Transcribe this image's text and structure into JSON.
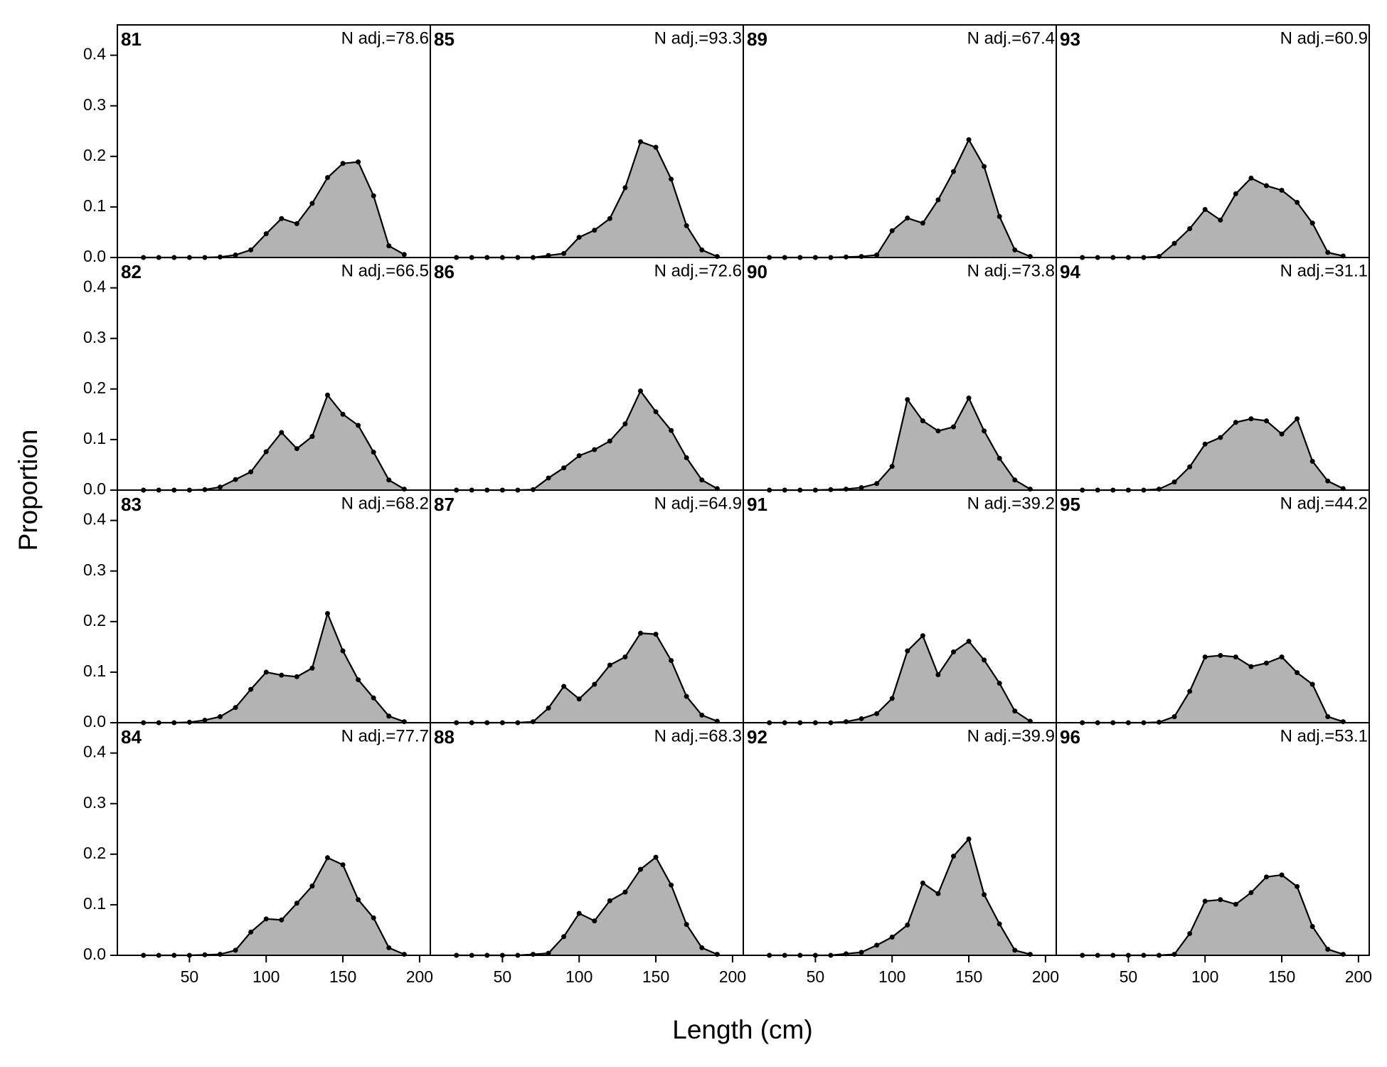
{
  "xlabel": "Length (cm)",
  "ylabel": "Proportion",
  "chart_data": [
    {
      "type": "area",
      "title": "81",
      "annotation": "N adj.=78.6",
      "color": "#b3b3b3",
      "x": [
        20,
        30,
        40,
        50,
        60,
        70,
        80,
        90,
        100,
        110,
        120,
        130,
        140,
        150,
        160,
        170,
        180,
        190
      ],
      "values": [
        0,
        0,
        0,
        0,
        0,
        0.001,
        0.005,
        0.015,
        0.047,
        0.077,
        0.067,
        0.107,
        0.158,
        0.186,
        0.189,
        0.122,
        0.023,
        0.006
      ],
      "xlim": [
        3,
        207
      ],
      "ylim": [
        0,
        0.46
      ],
      "yticks": [
        {
          "value": 0,
          "label": "0.0"
        },
        0.1,
        0.2,
        0.3,
        0.4
      ]
    },
    {
      "type": "area",
      "title": "82",
      "annotation": "N adj.=66.5",
      "color": "#b3b3b3",
      "x": [
        20,
        30,
        40,
        50,
        60,
        70,
        80,
        90,
        100,
        110,
        120,
        130,
        140,
        150,
        160,
        170,
        180,
        190
      ],
      "values": [
        0,
        0,
        0,
        0,
        0.001,
        0.006,
        0.021,
        0.036,
        0.076,
        0.114,
        0.082,
        0.106,
        0.188,
        0.15,
        0.128,
        0.075,
        0.02,
        0.002
      ],
      "xlim": [
        3,
        207
      ],
      "ylim": [
        0,
        0.46
      ],
      "yticks": [
        {
          "value": 0,
          "label": "0.0"
        },
        0.1,
        0.2,
        0.3,
        0.4
      ]
    },
    {
      "type": "area",
      "title": "83",
      "annotation": "N adj.=68.2",
      "color": "#b3b3b3",
      "x": [
        20,
        30,
        40,
        50,
        60,
        70,
        80,
        90,
        100,
        110,
        120,
        130,
        140,
        150,
        160,
        170,
        180,
        190
      ],
      "values": [
        0,
        0,
        0,
        0.001,
        0.005,
        0.012,
        0.03,
        0.066,
        0.1,
        0.094,
        0.091,
        0.108,
        0.216,
        0.142,
        0.085,
        0.049,
        0.013,
        0.002
      ],
      "xlim": [
        3,
        207
      ],
      "ylim": [
        0,
        0.46
      ],
      "yticks": [
        {
          "value": 0,
          "label": "0.0"
        },
        0.1,
        0.2,
        0.3,
        0.4
      ]
    },
    {
      "type": "area",
      "title": "84",
      "annotation": "N adj.=77.7",
      "color": "#b3b3b3",
      "x": [
        20,
        30,
        40,
        50,
        60,
        70,
        80,
        90,
        100,
        110,
        120,
        130,
        140,
        150,
        160,
        170,
        180,
        190
      ],
      "values": [
        0,
        0,
        0,
        0,
        0.001,
        0.002,
        0.01,
        0.046,
        0.072,
        0.07,
        0.103,
        0.137,
        0.193,
        0.179,
        0.11,
        0.074,
        0.015,
        0.002
      ],
      "xlim": [
        3,
        207
      ],
      "ylim": [
        0,
        0.46
      ],
      "yticks": [
        {
          "value": 0,
          "label": "0.0"
        },
        0.1,
        0.2,
        0.3,
        0.4
      ],
      "xticks": [
        50,
        100,
        150,
        200
      ]
    },
    {
      "type": "area",
      "title": "85",
      "annotation": "N adj.=93.3",
      "color": "#b3b3b3",
      "x": [
        20,
        30,
        40,
        50,
        60,
        70,
        80,
        90,
        100,
        110,
        120,
        130,
        140,
        150,
        160,
        170,
        180,
        190
      ],
      "values": [
        0,
        0,
        0,
        0,
        0,
        0,
        0.004,
        0.008,
        0.04,
        0.054,
        0.077,
        0.138,
        0.229,
        0.218,
        0.155,
        0.063,
        0.015,
        0.002
      ],
      "xlim": [
        3,
        207
      ],
      "ylim": [
        0,
        0.46
      ]
    },
    {
      "type": "area",
      "title": "86",
      "annotation": "N adj.=72.6",
      "color": "#b3b3b3",
      "x": [
        20,
        30,
        40,
        50,
        60,
        70,
        80,
        90,
        100,
        110,
        120,
        130,
        140,
        150,
        160,
        170,
        180,
        190
      ],
      "values": [
        0,
        0,
        0,
        0,
        0,
        0.001,
        0.024,
        0.044,
        0.068,
        0.08,
        0.097,
        0.131,
        0.196,
        0.155,
        0.118,
        0.064,
        0.02,
        0.003
      ],
      "xlim": [
        3,
        207
      ],
      "ylim": [
        0,
        0.46
      ]
    },
    {
      "type": "area",
      "title": "87",
      "annotation": "N adj.=64.9",
      "color": "#b3b3b3",
      "x": [
        20,
        30,
        40,
        50,
        60,
        70,
        80,
        90,
        100,
        110,
        120,
        130,
        140,
        150,
        160,
        170,
        180,
        190
      ],
      "values": [
        0,
        0,
        0,
        0,
        0,
        0.002,
        0.029,
        0.072,
        0.047,
        0.076,
        0.114,
        0.13,
        0.177,
        0.175,
        0.123,
        0.052,
        0.015,
        0.003
      ],
      "xlim": [
        3,
        207
      ],
      "ylim": [
        0,
        0.46
      ]
    },
    {
      "type": "area",
      "title": "88",
      "annotation": "N adj.=68.3",
      "color": "#b3b3b3",
      "x": [
        20,
        30,
        40,
        50,
        60,
        70,
        80,
        90,
        100,
        110,
        120,
        130,
        140,
        150,
        160,
        170,
        180,
        190
      ],
      "values": [
        0,
        0,
        0,
        0,
        0,
        0.002,
        0.004,
        0.037,
        0.083,
        0.068,
        0.108,
        0.125,
        0.17,
        0.194,
        0.139,
        0.061,
        0.015,
        0.002
      ],
      "xlim": [
        3,
        207
      ],
      "ylim": [
        0,
        0.46
      ],
      "xticks": [
        50,
        100,
        150,
        200
      ]
    },
    {
      "type": "area",
      "title": "89",
      "annotation": "N adj.=67.4",
      "color": "#b3b3b3",
      "x": [
        20,
        30,
        40,
        50,
        60,
        70,
        80,
        90,
        100,
        110,
        120,
        130,
        140,
        150,
        160,
        170,
        180,
        190
      ],
      "values": [
        0,
        0,
        0,
        0,
        0,
        0.001,
        0.002,
        0.005,
        0.053,
        0.078,
        0.068,
        0.114,
        0.17,
        0.233,
        0.18,
        0.081,
        0.015,
        0.002
      ],
      "xlim": [
        3,
        207
      ],
      "ylim": [
        0,
        0.46
      ]
    },
    {
      "type": "area",
      "title": "90",
      "annotation": "N adj.=73.8",
      "color": "#b3b3b3",
      "x": [
        20,
        30,
        40,
        50,
        60,
        70,
        80,
        90,
        100,
        110,
        120,
        130,
        140,
        150,
        160,
        170,
        180,
        190
      ],
      "values": [
        0,
        0,
        0,
        0,
        0.001,
        0.002,
        0.005,
        0.013,
        0.047,
        0.179,
        0.137,
        0.117,
        0.125,
        0.182,
        0.117,
        0.063,
        0.02,
        0.002
      ],
      "xlim": [
        3,
        207
      ],
      "ylim": [
        0,
        0.46
      ]
    },
    {
      "type": "area",
      "title": "91",
      "annotation": "N adj.=39.2",
      "color": "#b3b3b3",
      "x": [
        20,
        30,
        40,
        50,
        60,
        70,
        80,
        90,
        100,
        110,
        120,
        130,
        140,
        150,
        160,
        170,
        180,
        190
      ],
      "values": [
        0,
        0,
        0,
        0,
        0,
        0.002,
        0.008,
        0.018,
        0.048,
        0.142,
        0.172,
        0.095,
        0.14,
        0.161,
        0.124,
        0.078,
        0.023,
        0.003
      ],
      "xlim": [
        3,
        207
      ],
      "ylim": [
        0,
        0.46
      ]
    },
    {
      "type": "area",
      "title": "92",
      "annotation": "N adj.=39.9",
      "color": "#b3b3b3",
      "x": [
        20,
        30,
        40,
        50,
        60,
        70,
        80,
        90,
        100,
        110,
        120,
        130,
        140,
        150,
        160,
        170,
        180,
        190
      ],
      "values": [
        0,
        0,
        0,
        0,
        0,
        0.003,
        0.006,
        0.02,
        0.036,
        0.06,
        0.143,
        0.122,
        0.196,
        0.23,
        0.12,
        0.062,
        0.01,
        0.002
      ],
      "xlim": [
        3,
        207
      ],
      "ylim": [
        0,
        0.46
      ],
      "xticks": [
        50,
        100,
        150,
        200
      ]
    },
    {
      "type": "area",
      "title": "93",
      "annotation": "N adj.=60.9",
      "color": "#b3b3b3",
      "x": [
        20,
        30,
        40,
        50,
        60,
        70,
        80,
        90,
        100,
        110,
        120,
        130,
        140,
        150,
        160,
        170,
        180,
        190
      ],
      "values": [
        0,
        0,
        0,
        0,
        0,
        0.002,
        0.028,
        0.057,
        0.095,
        0.074,
        0.126,
        0.157,
        0.142,
        0.133,
        0.109,
        0.068,
        0.01,
        0.003
      ],
      "xlim": [
        3,
        207
      ],
      "ylim": [
        0,
        0.46
      ]
    },
    {
      "type": "area",
      "title": "94",
      "annotation": "N adj.=31.1",
      "color": "#b3b3b3",
      "x": [
        20,
        30,
        40,
        50,
        60,
        70,
        80,
        90,
        100,
        110,
        120,
        130,
        140,
        150,
        160,
        170,
        180,
        190
      ],
      "values": [
        0,
        0,
        0,
        0,
        0,
        0.002,
        0.016,
        0.046,
        0.091,
        0.104,
        0.134,
        0.141,
        0.137,
        0.111,
        0.141,
        0.057,
        0.018,
        0.003
      ],
      "xlim": [
        3,
        207
      ],
      "ylim": [
        0,
        0.46
      ]
    },
    {
      "type": "area",
      "title": "95",
      "annotation": "N adj.=44.2",
      "color": "#b3b3b3",
      "x": [
        20,
        30,
        40,
        50,
        60,
        70,
        80,
        90,
        100,
        110,
        120,
        130,
        140,
        150,
        160,
        170,
        180,
        190
      ],
      "values": [
        0,
        0,
        0,
        0,
        0,
        0.001,
        0.012,
        0.062,
        0.13,
        0.133,
        0.13,
        0.111,
        0.118,
        0.13,
        0.099,
        0.076,
        0.012,
        0.002
      ],
      "xlim": [
        3,
        207
      ],
      "ylim": [
        0,
        0.46
      ]
    },
    {
      "type": "area",
      "title": "96",
      "annotation": "N adj.=53.1",
      "color": "#b3b3b3",
      "x": [
        20,
        30,
        40,
        50,
        60,
        70,
        80,
        90,
        100,
        110,
        120,
        130,
        140,
        150,
        160,
        170,
        180,
        190
      ],
      "values": [
        0,
        0,
        0,
        0,
        0,
        0,
        0.002,
        0.043,
        0.107,
        0.11,
        0.101,
        0.124,
        0.155,
        0.159,
        0.136,
        0.057,
        0.012,
        0.002
      ],
      "xlim": [
        3,
        207
      ],
      "ylim": [
        0,
        0.46
      ],
      "xticks": [
        50,
        100,
        150,
        200
      ]
    }
  ]
}
